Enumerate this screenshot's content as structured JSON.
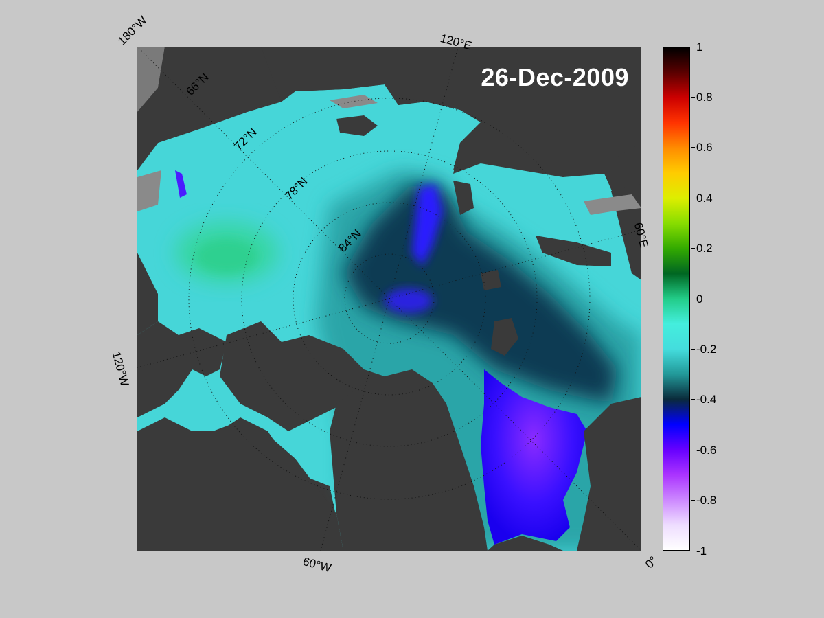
{
  "map": {
    "date": "26-Dec-2009",
    "projection": "north-polar-stereographic",
    "longitude_labels": [
      "180°W",
      "120°E",
      "60°E",
      "0°",
      "60°W",
      "120°W"
    ],
    "latitude_labels": [
      "66°N",
      "72°N",
      "78°N",
      "84°N"
    ],
    "land_color": "#3a3a3a",
    "grid_style": "dotted"
  },
  "colorbar": {
    "min": -1,
    "max": 1,
    "tick_labels": [
      "1",
      "0.8",
      "0.6",
      "0.4",
      "0.2",
      "0",
      "-0.2",
      "-0.4",
      "-0.6",
      "-0.8",
      "-1"
    ],
    "colors": {
      "1": "#000000",
      "0.9": "#5a0000",
      "0.8": "#cc0000",
      "0.7": "#ff3300",
      "0.6": "#ff8c00",
      "0.5": "#ffcc00",
      "0.4": "#ddee00",
      "0.3": "#88dd00",
      "0.2": "#33aa00",
      "0.1": "#006622",
      "0": "#22cc88",
      "-0.1": "#44eedd",
      "-0.2": "#44dddd",
      "-0.3": "#229999",
      "-0.4": "#0a2a3a",
      "-0.5": "#0000ff",
      "-0.6": "#6600ff",
      "-0.7": "#aa33ff",
      "-0.8": "#cc88ff",
      "-0.9": "#eeddff",
      "-1": "#ffffff"
    }
  }
}
